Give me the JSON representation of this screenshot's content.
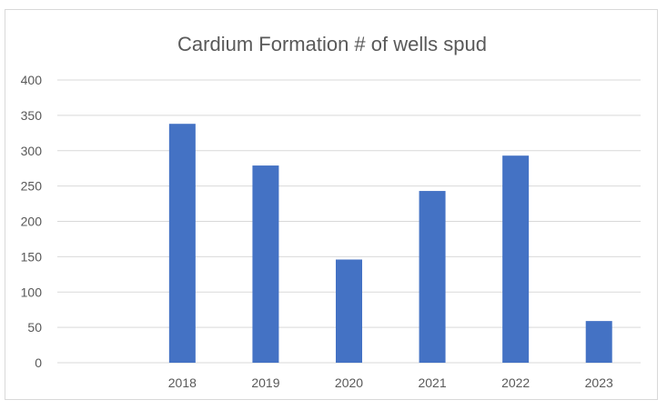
{
  "chart_data": {
    "type": "bar",
    "title": "Cardium Formation # of wells spud",
    "categories": [
      "",
      "2018",
      "2019",
      "2020",
      "2021",
      "2022",
      "2023"
    ],
    "values": [
      null,
      338,
      279,
      146,
      243,
      293,
      59
    ],
    "ylim": [
      0,
      400
    ],
    "yticks": [
      0,
      50,
      100,
      150,
      200,
      250,
      300,
      350,
      400
    ],
    "grid": true,
    "legend": "none",
    "colors": {
      "bar": "#4472c4",
      "grid": "#d9d9d9",
      "text": "#595959"
    }
  }
}
